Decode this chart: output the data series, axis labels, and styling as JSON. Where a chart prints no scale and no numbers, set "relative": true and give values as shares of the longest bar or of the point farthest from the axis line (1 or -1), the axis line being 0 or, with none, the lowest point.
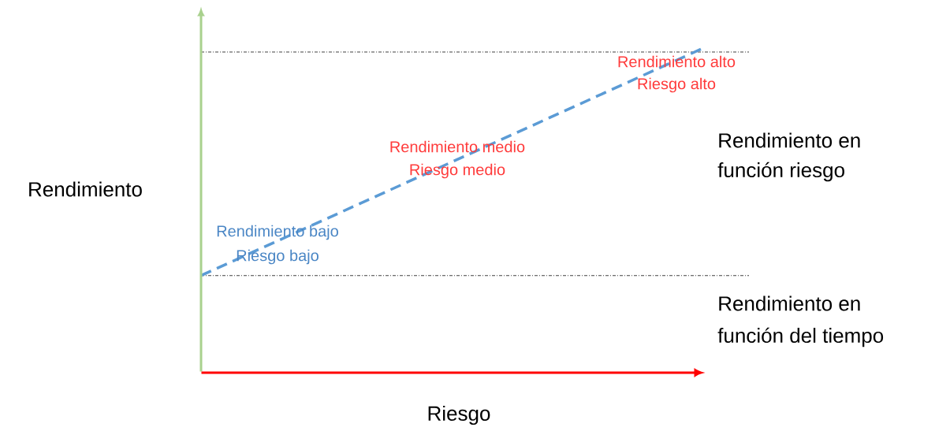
{
  "chart_data": {
    "type": "line",
    "relative": true,
    "xlabel": "Riesgo",
    "ylabel": "Rendimiento",
    "categories": [
      null,
      null
    ],
    "line_style": "dashed",
    "series": [
      {
        "color": "#5b9bd5",
        "values": [
          0.3,
          1
        ]
      }
    ],
    "ref_lines": [
      {
        "axis": "y",
        "value": 0.3,
        "color": "#404040",
        "line_style": "dashdot"
      },
      {
        "axis": "y",
        "value": 0.99,
        "color": "#404040",
        "line_style": "dashdot"
      }
    ],
    "annotations": [
      "Rendimiento alto",
      "Riesgo alto",
      "Rendimiento medio",
      "Riesgo medio",
      "Rendimiento bajo",
      "Riesgo bajo",
      "Rendimiento en",
      "función riesgo",
      "Rendimiento en",
      "función del tiempo"
    ]
  }
}
